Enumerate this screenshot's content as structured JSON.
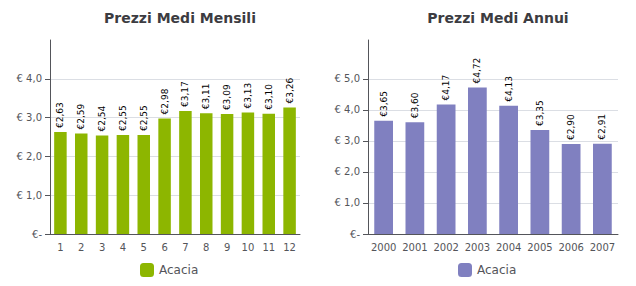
{
  "chart_data": [
    {
      "type": "bar",
      "title": "Prezzi Medi Mensili",
      "categories": [
        "1",
        "2",
        "3",
        "4",
        "5",
        "6",
        "7",
        "8",
        "9",
        "10",
        "11",
        "12"
      ],
      "series": [
        {
          "name": "Acacia",
          "color": "#8DB600",
          "values": [
            2.63,
            2.59,
            2.54,
            2.55,
            2.55,
            2.98,
            3.17,
            3.11,
            3.09,
            3.13,
            3.1,
            3.26
          ],
          "value_labels": [
            "€2,63",
            "€2,59",
            "€2,54",
            "€2,55",
            "€2,55",
            "€2,98",
            "€3,17",
            "€3,11",
            "€3,09",
            "€3,13",
            "€3,10",
            "€3,26"
          ]
        }
      ],
      "ylim": [
        0,
        5.0
      ],
      "yticks": [
        {
          "value": 0,
          "label": "€-"
        },
        {
          "value": 1.0,
          "label": "€ 1,0"
        },
        {
          "value": 2.0,
          "label": "€ 2,0"
        },
        {
          "value": 3.0,
          "label": "€ 3,0"
        },
        {
          "value": 4.0,
          "label": "€ 4,0"
        }
      ],
      "grid": true,
      "data_labels": true,
      "legend": "bottom"
    },
    {
      "type": "bar",
      "title": "Prezzi Medi Annui",
      "categories": [
        "2000",
        "2001",
        "2002",
        "2003",
        "2004",
        "2005",
        "2006",
        "2007"
      ],
      "series": [
        {
          "name": "Acacia",
          "color": "#8080C0",
          "values": [
            3.65,
            3.6,
            4.17,
            4.72,
            4.13,
            3.35,
            2.9,
            2.91
          ],
          "value_labels": [
            "€3,65",
            "€3,60",
            "€4,17",
            "€4,72",
            "€4,13",
            "€3,35",
            "€2,90",
            "€2,91"
          ]
        }
      ],
      "ylim": [
        0,
        6.25
      ],
      "yticks": [
        {
          "value": 0,
          "label": "€-"
        },
        {
          "value": 1.0,
          "label": "€ 1,0"
        },
        {
          "value": 2.0,
          "label": "€ 2,0"
        },
        {
          "value": 3.0,
          "label": "€ 3,0"
        },
        {
          "value": 4.0,
          "label": "€ 4,0"
        },
        {
          "value": 5.0,
          "label": "€ 5,0"
        }
      ],
      "grid": true,
      "data_labels": true,
      "legend": "bottom"
    }
  ]
}
